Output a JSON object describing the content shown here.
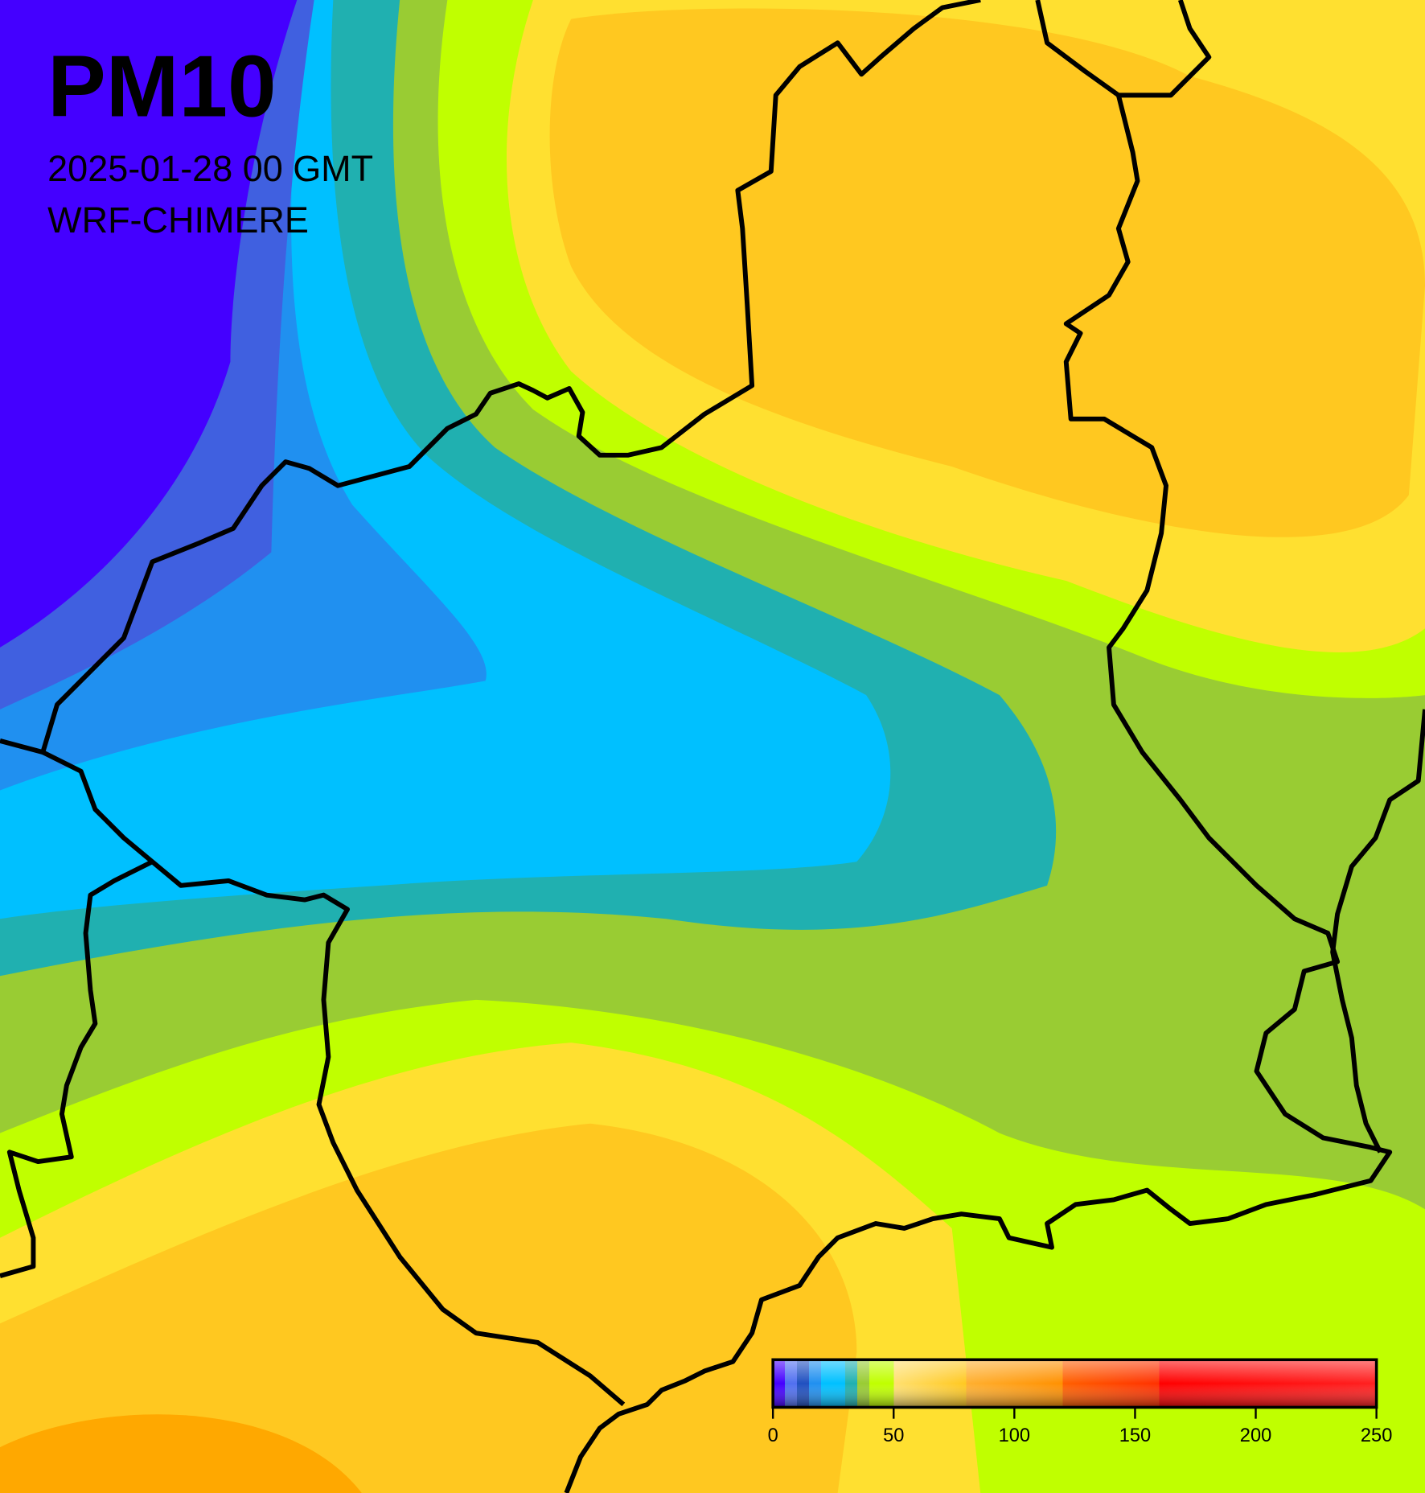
{
  "title": "PM10",
  "date": "2025-01-28 00 GMT",
  "model": "WRF-CHIMERE",
  "colorbar": {
    "range": [
      0,
      250
    ],
    "ticks": [
      0,
      50,
      100,
      150,
      200,
      250
    ]
  }
}
